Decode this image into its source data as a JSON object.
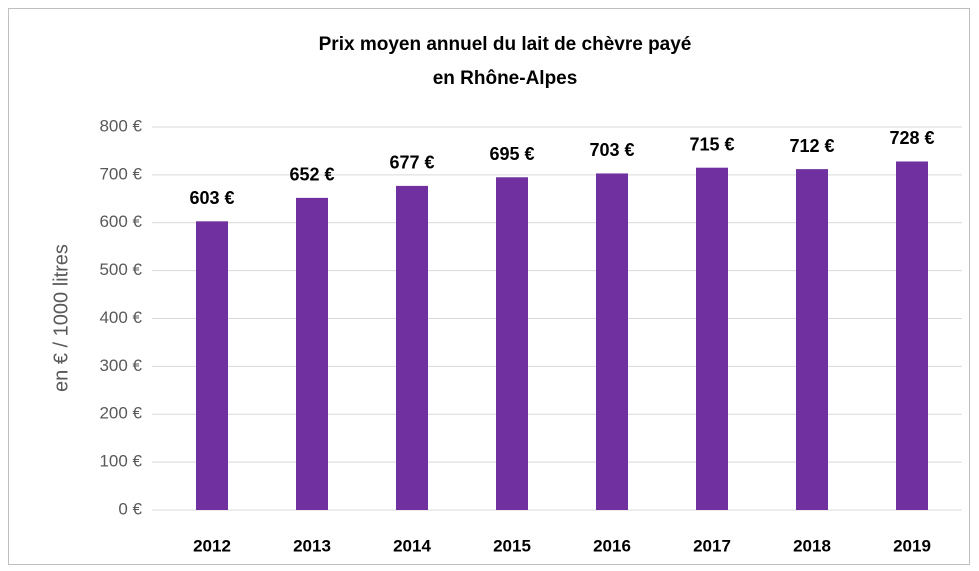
{
  "chart_data": {
    "type": "bar",
    "title": [
      "Prix moyen annuel du lait de chèvre payé",
      "en Rhône-Alpes"
    ],
    "y_label": "en € / 1000 litres",
    "categories": [
      "2012",
      "2013",
      "2014",
      "2015",
      "2016",
      "2017",
      "2018",
      "2019"
    ],
    "values": [
      603,
      652,
      677,
      695,
      703,
      715,
      712,
      728
    ],
    "value_labels": [
      "603 €",
      "652 €",
      "677 €",
      "695 €",
      "703 €",
      "715 €",
      "712 €",
      "728 €"
    ],
    "color": "#7030a0",
    "ylim": [
      0,
      800
    ],
    "yticks": [
      {
        "value": 0,
        "label": "0 €"
      },
      {
        "value": 100,
        "label": "100 €"
      },
      {
        "value": 200,
        "label": "200 €"
      },
      {
        "value": 300,
        "label": "300 €"
      },
      {
        "value": 400,
        "label": "400 €"
      },
      {
        "value": 500,
        "label": "500 €"
      },
      {
        "value": 600,
        "label": "600 €"
      },
      {
        "value": 700,
        "label": "700 €"
      },
      {
        "value": 800,
        "label": "800 €"
      }
    ],
    "grid": true
  }
}
